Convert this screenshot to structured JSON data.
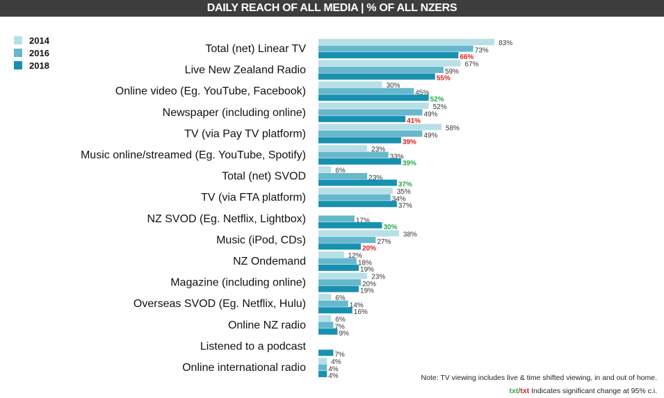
{
  "chart_data": {
    "type": "bar",
    "orientation": "horizontal",
    "title": "DAILY REACH OF ALL MEDIA | % OF ALL NZERS",
    "unit": "%",
    "legend_placement": "top-left",
    "colors": {
      "2014": "#b7dfe7",
      "2016": "#66b8cc",
      "2018": "#1891b1",
      "sig_up": "#2aa84a",
      "sig_down": "#e0201c",
      "text": "#333333"
    },
    "categories": [
      "Total (net) Linear TV",
      "Live New Zealand Radio",
      "Online video (Eg. YouTube, Facebook)",
      "Newspaper (including online)",
      "TV (via Pay TV platform)",
      "Music online/streamed (Eg. YouTube, Spotify)",
      "Total (net) SVOD",
      "TV (via FTA platform)",
      "NZ SVOD (Eg. Netflix, Lightbox)",
      "Music (iPod, CDs)",
      "NZ Ondemand",
      "Magazine (including online)",
      "Overseas SVOD (Eg. Netflix, Hulu)",
      "Online NZ radio",
      "Listened to a podcast",
      "Online international radio"
    ],
    "series": [
      {
        "name": "2014",
        "values": [
          83,
          67,
          30,
          52,
          58,
          23,
          6,
          35,
          null,
          38,
          12,
          23,
          6,
          6,
          null,
          4
        ]
      },
      {
        "name": "2016",
        "values": [
          73,
          59,
          45,
          49,
          49,
          33,
          23,
          34,
          17,
          27,
          18,
          20,
          14,
          7,
          null,
          4
        ]
      },
      {
        "name": "2018",
        "values": [
          66,
          55,
          52,
          41,
          39,
          39,
          37,
          37,
          30,
          20,
          19,
          19,
          16,
          9,
          7,
          4
        ],
        "significance": [
          "down",
          "down",
          "up",
          "down",
          "down",
          "up",
          "up",
          null,
          "up",
          "down",
          null,
          null,
          null,
          null,
          null,
          null
        ]
      }
    ],
    "xlim": [
      0,
      100
    ],
    "grid": false
  },
  "header": {
    "title": "DAILY REACH OF ALL MEDIA | % OF ALL NZERS"
  },
  "note": {
    "line1": "Note: TV viewing includes live & time shifted viewing, in and out of home.",
    "txt_green": "txt",
    "slash": "/",
    "txt_red": "txt",
    "line2": " Indicates significant change at 95% c.i."
  }
}
